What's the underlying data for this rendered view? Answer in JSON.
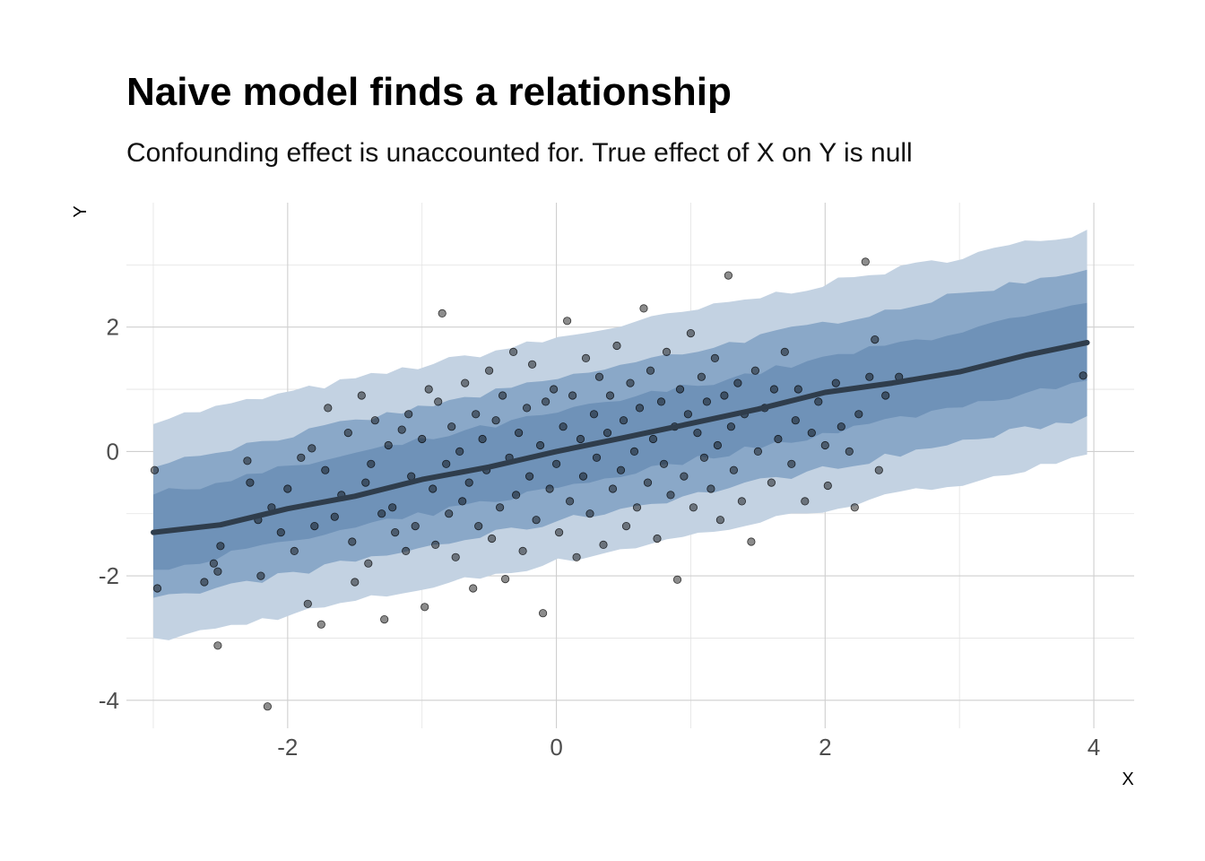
{
  "chart_data": {
    "type": "scatter",
    "title": "Naive model finds a relationship",
    "subtitle": "Confounding effect is unaccounted for. True effect of X on Y is null",
    "xlabel": "X",
    "ylabel": "Y",
    "xlim": [
      -3.2,
      4.3
    ],
    "ylim": [
      -4.45,
      4.0
    ],
    "x_ticks": [
      -2,
      0,
      2,
      4
    ],
    "y_ticks": [
      -4,
      -2,
      0,
      2
    ],
    "grid": true,
    "legend": "none",
    "colors": {
      "band_outer": "#c3d2e2",
      "band_middle": "#8aa8c8",
      "band_inner": "#6f92b8",
      "median_line": "#2f3d4c",
      "points": "#000000"
    },
    "median_line": {
      "x": [
        -3.0,
        -2.5,
        -2.0,
        -1.5,
        -1.0,
        -0.5,
        0.0,
        0.5,
        1.0,
        1.5,
        2.0,
        2.5,
        3.0,
        3.5,
        3.95
      ],
      "y": [
        -1.3,
        -1.18,
        -0.92,
        -0.72,
        -0.45,
        -0.25,
        0.0,
        0.22,
        0.45,
        0.68,
        0.95,
        1.1,
        1.28,
        1.55,
        1.75
      ]
    },
    "bands": [
      {
        "level": "outer",
        "x": [
          -3.0,
          3.95
        ],
        "lower": [
          -3.05,
          -0.1
        ],
        "upper": [
          0.5,
          3.55
        ]
      },
      {
        "level": "middle",
        "x": [
          -3.0,
          3.95
        ],
        "lower": [
          -2.4,
          0.55
        ],
        "upper": [
          -0.2,
          2.95
        ]
      },
      {
        "level": "inner",
        "x": [
          -3.0,
          3.95
        ],
        "lower": [
          -1.9,
          1.15
        ],
        "upper": [
          -0.7,
          2.35
        ]
      }
    ],
    "points": [
      [
        -2.99,
        -0.3
      ],
      [
        -2.97,
        -2.2
      ],
      [
        -2.62,
        -2.1
      ],
      [
        -2.55,
        -1.8
      ],
      [
        -2.52,
        -1.93
      ],
      [
        -2.5,
        -1.52
      ],
      [
        -2.52,
        -3.12
      ],
      [
        -2.3,
        -0.15
      ],
      [
        -2.28,
        -0.5
      ],
      [
        -2.22,
        -1.1
      ],
      [
        -2.2,
        -2.0
      ],
      [
        -2.15,
        -4.1
      ],
      [
        -2.12,
        -0.9
      ],
      [
        -2.05,
        -1.3
      ],
      [
        -2.0,
        -0.6
      ],
      [
        -1.95,
        -1.6
      ],
      [
        -1.9,
        -0.1
      ],
      [
        -1.85,
        -2.45
      ],
      [
        -1.82,
        0.05
      ],
      [
        -1.8,
        -1.2
      ],
      [
        -1.75,
        -2.78
      ],
      [
        -1.72,
        -0.3
      ],
      [
        -1.7,
        0.7
      ],
      [
        -1.65,
        -1.05
      ],
      [
        -1.6,
        -0.7
      ],
      [
        -1.55,
        0.3
      ],
      [
        -1.52,
        -1.45
      ],
      [
        -1.5,
        -2.1
      ],
      [
        -1.45,
        0.9
      ],
      [
        -1.42,
        -0.5
      ],
      [
        -1.4,
        -1.8
      ],
      [
        -1.38,
        -0.2
      ],
      [
        -1.35,
        0.5
      ],
      [
        -1.3,
        -1.0
      ],
      [
        -1.28,
        -2.7
      ],
      [
        -1.25,
        0.1
      ],
      [
        -1.22,
        -0.9
      ],
      [
        -1.2,
        -1.3
      ],
      [
        -1.15,
        0.35
      ],
      [
        -1.12,
        -1.6
      ],
      [
        -1.1,
        0.6
      ],
      [
        -1.08,
        -0.4
      ],
      [
        -1.05,
        -1.2
      ],
      [
        -1.0,
        0.2
      ],
      [
        -0.98,
        -2.5
      ],
      [
        -0.95,
        1.0
      ],
      [
        -0.92,
        -0.6
      ],
      [
        -0.9,
        -1.5
      ],
      [
        -0.88,
        0.8
      ],
      [
        -0.85,
        2.22
      ],
      [
        -0.82,
        -0.2
      ],
      [
        -0.8,
        -1.0
      ],
      [
        -0.78,
        0.4
      ],
      [
        -0.75,
        -1.7
      ],
      [
        -0.72,
        0.0
      ],
      [
        -0.7,
        -0.8
      ],
      [
        -0.68,
        1.1
      ],
      [
        -0.65,
        -0.5
      ],
      [
        -0.62,
        -2.2
      ],
      [
        -0.6,
        0.6
      ],
      [
        -0.58,
        -1.2
      ],
      [
        -0.55,
        0.2
      ],
      [
        -0.52,
        -0.3
      ],
      [
        -0.5,
        1.3
      ],
      [
        -0.48,
        -1.4
      ],
      [
        -0.45,
        0.5
      ],
      [
        -0.42,
        -0.9
      ],
      [
        -0.4,
        0.9
      ],
      [
        -0.38,
        -2.05
      ],
      [
        -0.35,
        -0.1
      ],
      [
        -0.32,
        1.6
      ],
      [
        -0.3,
        -0.7
      ],
      [
        -0.28,
        0.3
      ],
      [
        -0.25,
        -1.6
      ],
      [
        -0.22,
        0.7
      ],
      [
        -0.2,
        -0.4
      ],
      [
        -0.18,
        1.4
      ],
      [
        -0.15,
        -1.1
      ],
      [
        -0.12,
        0.1
      ],
      [
        -0.1,
        -2.6
      ],
      [
        -0.08,
        0.8
      ],
      [
        -0.05,
        -0.6
      ],
      [
        -0.02,
        1.0
      ],
      [
        0.0,
        -0.2
      ],
      [
        0.02,
        -1.3
      ],
      [
        0.05,
        0.4
      ],
      [
        0.08,
        2.1
      ],
      [
        0.1,
        -0.8
      ],
      [
        0.12,
        0.9
      ],
      [
        0.15,
        -1.7
      ],
      [
        0.18,
        0.2
      ],
      [
        0.2,
        -0.4
      ],
      [
        0.22,
        1.5
      ],
      [
        0.25,
        -1.0
      ],
      [
        0.28,
        0.6
      ],
      [
        0.3,
        -0.1
      ],
      [
        0.32,
        1.2
      ],
      [
        0.35,
        -1.5
      ],
      [
        0.38,
        0.3
      ],
      [
        0.4,
        0.9
      ],
      [
        0.42,
        -0.6
      ],
      [
        0.45,
        1.7
      ],
      [
        0.48,
        -0.3
      ],
      [
        0.5,
        0.5
      ],
      [
        0.52,
        -1.2
      ],
      [
        0.55,
        1.1
      ],
      [
        0.58,
        0.0
      ],
      [
        0.6,
        -0.9
      ],
      [
        0.62,
        0.7
      ],
      [
        0.65,
        2.3
      ],
      [
        0.68,
        -0.5
      ],
      [
        0.7,
        1.3
      ],
      [
        0.72,
        0.2
      ],
      [
        0.75,
        -1.4
      ],
      [
        0.78,
        0.8
      ],
      [
        0.8,
        -0.2
      ],
      [
        0.82,
        1.6
      ],
      [
        0.85,
        -0.7
      ],
      [
        0.88,
        0.4
      ],
      [
        0.9,
        -2.06
      ],
      [
        0.92,
        1.0
      ],
      [
        0.95,
        -0.4
      ],
      [
        0.98,
        0.6
      ],
      [
        1.0,
        1.9
      ],
      [
        1.02,
        -0.9
      ],
      [
        1.05,
        0.3
      ],
      [
        1.08,
        1.2
      ],
      [
        1.1,
        -0.1
      ],
      [
        1.12,
        0.8
      ],
      [
        1.15,
        -0.6
      ],
      [
        1.18,
        1.5
      ],
      [
        1.2,
        0.1
      ],
      [
        1.22,
        -1.1
      ],
      [
        1.25,
        0.9
      ],
      [
        1.28,
        2.83
      ],
      [
        1.3,
        0.4
      ],
      [
        1.32,
        -0.3
      ],
      [
        1.35,
        1.1
      ],
      [
        1.38,
        -0.8
      ],
      [
        1.4,
        0.6
      ],
      [
        1.45,
        -1.45
      ],
      [
        1.48,
        1.3
      ],
      [
        1.5,
        0.0
      ],
      [
        1.55,
        0.7
      ],
      [
        1.6,
        -0.5
      ],
      [
        1.62,
        1.0
      ],
      [
        1.65,
        0.2
      ],
      [
        1.7,
        1.6
      ],
      [
        1.75,
        -0.2
      ],
      [
        1.78,
        0.5
      ],
      [
        1.8,
        1.0
      ],
      [
        1.85,
        -0.8
      ],
      [
        1.9,
        0.3
      ],
      [
        1.95,
        0.8
      ],
      [
        2.0,
        0.1
      ],
      [
        2.02,
        -0.55
      ],
      [
        2.08,
        1.1
      ],
      [
        2.12,
        0.4
      ],
      [
        2.18,
        0.0
      ],
      [
        2.22,
        -0.9
      ],
      [
        2.25,
        0.6
      ],
      [
        2.3,
        3.05
      ],
      [
        2.33,
        1.2
      ],
      [
        2.37,
        1.8
      ],
      [
        2.4,
        -0.3
      ],
      [
        2.45,
        0.9
      ],
      [
        2.55,
        1.2
      ],
      [
        3.92,
        1.22
      ]
    ]
  }
}
